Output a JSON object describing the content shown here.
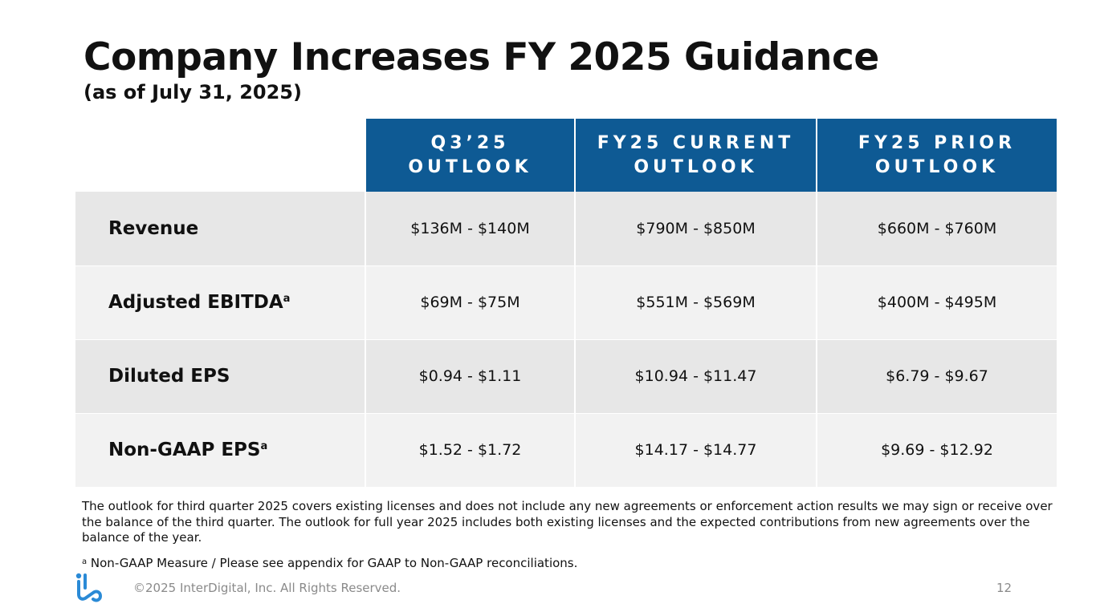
{
  "slide": {
    "title": "Company Increases FY 2025 Guidance",
    "subtitle": "(as of July 31, 2025)"
  },
  "table": {
    "headers": [
      {
        "line1": "Q3’25",
        "line2": "OUTLOOK"
      },
      {
        "line1": "FY25 CURRENT",
        "line2": "OUTLOOK"
      },
      {
        "line1": "FY25 PRIOR",
        "line2": "OUTLOOK"
      }
    ],
    "rows": [
      {
        "metric": "Revenue",
        "marker": "",
        "values": [
          "$136M - $140M",
          "$790M - $850M",
          "$660M - $760M"
        ]
      },
      {
        "metric": "Adjusted EBITDA",
        "marker": "a",
        "values": [
          "$69M - $75M",
          "$551M - $569M",
          "$400M - $495M"
        ]
      },
      {
        "metric": "Diluted EPS",
        "marker": "",
        "values": [
          "$0.94 - $1.11",
          "$10.94 - $11.47",
          "$6.79 - $9.67"
        ]
      },
      {
        "metric": "Non-GAAP EPS",
        "marker": "a",
        "values": [
          "$1.52 - $1.72",
          "$14.17 - $14.77",
          "$9.69 - $12.92"
        ]
      }
    ]
  },
  "footnotes": {
    "outlook_note": "The outlook for third quarter 2025 covers existing licenses and does not include any new agreements or enforcement action results we may sign or receive over the balance of the third quarter. The outlook for full year 2025 includes both existing licenses and the expected contributions from new agreements over the balance of the year.",
    "marker": "a",
    "non_gaap_note": " Non-GAAP Measure / Please see appendix for GAAP to Non-GAAP reconciliations."
  },
  "footer": {
    "logo_icon": "interdigital-logo-icon",
    "copyright": "©2025 InterDigital, Inc. All Rights Reserved.",
    "page_number": "12"
  },
  "colors": {
    "header_blue": "#0e5a94",
    "row_dark": "#e7e7e7",
    "row_light": "#f2f2f2",
    "logo_blue": "#2a8ad6"
  }
}
